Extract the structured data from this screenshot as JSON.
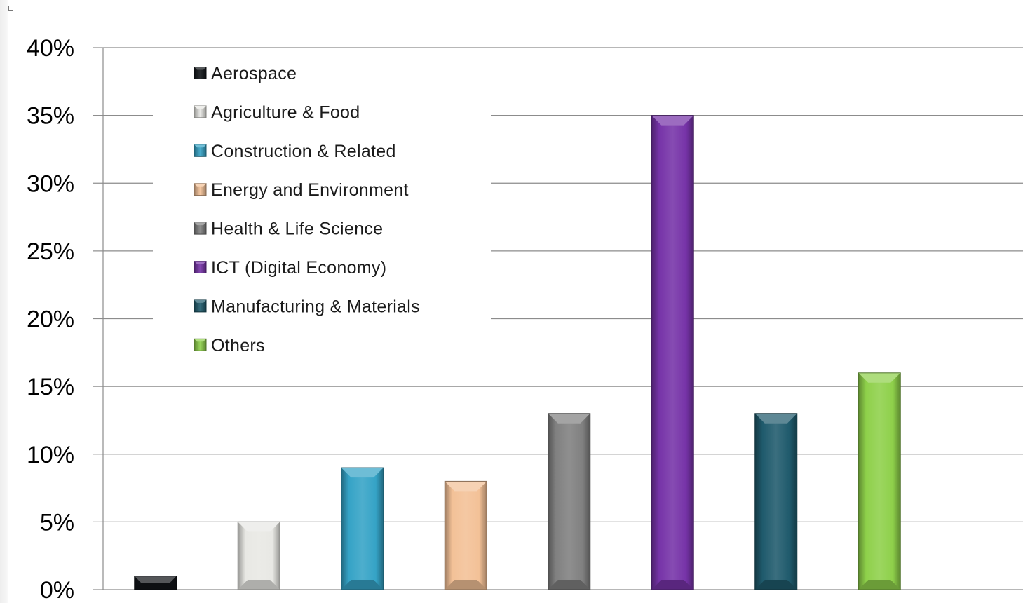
{
  "chart_data": {
    "type": "bar",
    "title": "",
    "xlabel": "",
    "ylabel": "",
    "ylim": [
      0,
      0.4
    ],
    "yticks": [
      0,
      0.05,
      0.1,
      0.15,
      0.2,
      0.25,
      0.3,
      0.35,
      0.4
    ],
    "ytick_labels": [
      "0%",
      "5%",
      "10%",
      "15%",
      "20%",
      "25%",
      "30%",
      "35%",
      "40%"
    ],
    "grid": "horizontal",
    "legend_position": "top-left",
    "series": [
      {
        "name": "Aerospace",
        "value": 0.01,
        "color": "#111418"
      },
      {
        "name": "Agriculture & Food",
        "value": 0.05,
        "color": "#e8e8e4"
      },
      {
        "name": "Construction & Related",
        "value": 0.09,
        "color": "#35a3c6"
      },
      {
        "name": "Energy and Environment",
        "value": 0.08,
        "color": "#f3c197"
      },
      {
        "name": "Health & Life Science",
        "value": 0.13,
        "color": "#808080"
      },
      {
        "name": "ICT (Digital Economy)",
        "value": 0.35,
        "color": "#7633a8"
      },
      {
        "name": "Manufacturing & Materials",
        "value": 0.13,
        "color": "#1f5a6c"
      },
      {
        "name": "Others",
        "value": 0.16,
        "color": "#8ed04a"
      }
    ]
  }
}
